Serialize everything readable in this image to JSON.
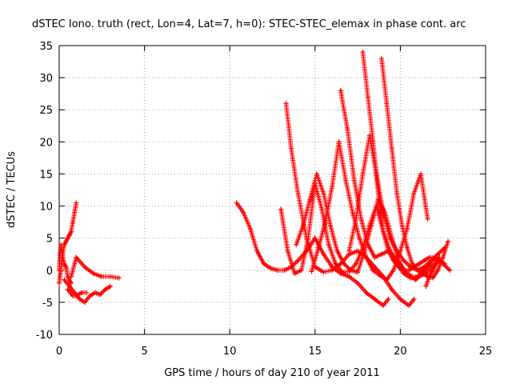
{
  "chart_data": {
    "type": "scatter",
    "title": "dSTEC Iono. truth (rect, Lon=4, Lat=7, h=0): STEC-STEC_elemax in phase cont. arc",
    "xlabel": "GPS time / hours of day 210 of year 2011",
    "ylabel": "dSTEC  / TECUs",
    "xlim": [
      0,
      25
    ],
    "ylim": [
      -10,
      35
    ],
    "xticks": [
      "0",
      "5",
      "10",
      "15",
      "20",
      "25"
    ],
    "yticks": [
      "-10",
      "-5",
      "0",
      "5",
      "10",
      "15",
      "20",
      "25",
      "30",
      "35"
    ],
    "grid": true,
    "marker": "+",
    "color": "#ff0000",
    "series": [
      {
        "x": [
          0.0,
          0.1,
          0.2,
          0.3,
          0.4,
          0.5,
          0.6,
          0.7,
          0.8,
          0.9,
          1.0
        ],
        "y": [
          -2.0,
          0.0,
          2.5,
          4.0,
          4.5,
          5.0,
          5.5,
          6.0,
          7.5,
          9.0,
          10.5
        ]
      },
      {
        "x": [
          0.0,
          0.05,
          0.1,
          0.2,
          0.3,
          0.4,
          0.5,
          0.7
        ],
        "y": [
          0.0,
          2.5,
          4.0,
          2.0,
          1.0,
          0.5,
          -1.0,
          -2.0
        ]
      },
      {
        "x": [
          0.7,
          1.0,
          1.5,
          2.0,
          2.5,
          3.0,
          3.5
        ],
        "y": [
          -1.0,
          2.0,
          0.5,
          -0.5,
          -1.0,
          -1.0,
          -1.2
        ]
      },
      {
        "x": [
          0.3,
          0.6,
          0.9,
          1.2,
          1.5,
          1.8,
          2.1,
          2.4,
          2.7,
          3.0
        ],
        "y": [
          -1.5,
          -2.5,
          -3.5,
          -4.5,
          -5.0,
          -4.0,
          -3.5,
          -3.8,
          -3.0,
          -2.5
        ]
      },
      {
        "x": [
          0.5,
          0.8,
          1.0,
          1.3,
          1.6
        ],
        "y": [
          -3.0,
          -4.0,
          -4.0,
          -3.5,
          -3.5
        ]
      },
      {
        "x": [
          10.4,
          10.8,
          11.2,
          11.6,
          12.0,
          12.4,
          12.8,
          13.2,
          13.6,
          14.0,
          14.5,
          15.0,
          15.5,
          16.0,
          16.5,
          17.0,
          17.5,
          18.0,
          18.5,
          19.0,
          19.3
        ],
        "y": [
          10.5,
          9.0,
          6.5,
          3.0,
          1.0,
          0.3,
          0.0,
          0.0,
          0.5,
          1.5,
          3.0,
          5.0,
          2.5,
          0.5,
          -0.5,
          -1.0,
          -2.0,
          -3.5,
          -4.5,
          -5.5,
          -4.5
        ]
      },
      {
        "x": [
          13.3,
          13.6,
          14.0,
          14.5,
          15.0,
          15.5,
          16.0,
          16.5,
          17.0,
          17.5,
          18.0,
          18.5,
          19.0,
          19.5,
          20.0,
          20.5,
          20.8
        ],
        "y": [
          26.0,
          19.0,
          12.0,
          5.0,
          0.5,
          -0.3,
          0.0,
          1.0,
          2.5,
          3.0,
          2.0,
          0.5,
          -1.0,
          -3.0,
          -4.5,
          -5.5,
          -4.5
        ]
      },
      {
        "x": [
          13.0,
          13.4,
          13.8,
          14.2,
          14.6,
          15.0,
          15.4,
          15.8,
          16.2,
          16.6,
          17.0,
          17.4,
          17.8,
          18.2,
          18.6,
          19.0,
          19.4,
          19.8,
          20.2,
          20.6,
          21.0,
          21.4,
          21.8
        ],
        "y": [
          9.5,
          3.0,
          -0.5,
          0.0,
          5.0,
          13.5,
          9.5,
          4.0,
          1.0,
          -0.3,
          -0.2,
          1.0,
          3.5,
          7.0,
          10.0,
          6.0,
          3.0,
          1.0,
          -0.5,
          -1.2,
          -1.0,
          0.0,
          1.0
        ]
      },
      {
        "x": [
          13.9,
          14.3,
          14.7,
          15.1,
          15.5,
          15.9,
          16.3,
          16.7,
          17.1,
          17.5,
          17.9,
          18.3,
          18.7,
          19.1,
          19.5,
          19.9,
          20.3,
          20.7,
          21.1,
          21.5,
          21.9,
          22.3
        ],
        "y": [
          4.0,
          7.0,
          11.0,
          15.0,
          12.0,
          7.0,
          3.0,
          1.0,
          0.0,
          -0.3,
          3.0,
          7.0,
          11.0,
          9.0,
          5.0,
          1.5,
          -0.5,
          -1.0,
          -1.0,
          -0.5,
          0.5,
          2.0
        ]
      },
      {
        "x": [
          14.8,
          15.2,
          15.6,
          16.0,
          16.4,
          16.8,
          17.2,
          17.6,
          18.0,
          18.4,
          18.8,
          19.2,
          19.6,
          20.0,
          20.4,
          20.8,
          21.2,
          21.6
        ],
        "y": [
          -0.2,
          3.5,
          7.5,
          13.0,
          20.0,
          14.0,
          9.0,
          5.0,
          2.0,
          0.0,
          -0.8,
          -1.5,
          0.0,
          3.0,
          6.5,
          12.0,
          15.0,
          8.0
        ]
      },
      {
        "x": [
          16.5,
          16.9,
          17.3,
          17.7,
          18.1,
          18.5,
          18.9,
          19.3,
          19.7,
          20.1,
          20.5,
          20.9,
          21.3,
          21.7,
          22.1
        ],
        "y": [
          28.0,
          22.0,
          14.0,
          8.0,
          4.0,
          2.0,
          2.5,
          3.0,
          2.0,
          0.5,
          -0.8,
          -1.5,
          -0.5,
          1.0,
          2.0
        ]
      },
      {
        "x": [
          17.0,
          17.4,
          17.8,
          18.2,
          18.6,
          19.0,
          19.4,
          19.8,
          20.2,
          20.6,
          21.0,
          21.4,
          21.8,
          22.2,
          22.6
        ],
        "y": [
          3.0,
          8.0,
          15.0,
          21.0,
          15.0,
          9.0,
          5.0,
          3.0,
          1.5,
          0.5,
          0.0,
          0.5,
          1.5,
          2.5,
          3.5
        ]
      },
      {
        "x": [
          17.8,
          18.1,
          18.4,
          18.7,
          19.0,
          19.3,
          19.6,
          19.9,
          20.2,
          20.5,
          20.8,
          21.1,
          21.4,
          21.7,
          22.0,
          22.3,
          22.6
        ],
        "y": [
          34.0,
          27.0,
          20.0,
          12.0,
          6.0,
          3.0,
          1.5,
          0.5,
          0.0,
          0.0,
          0.5,
          1.0,
          1.5,
          2.0,
          2.0,
          1.5,
          1.0
        ]
      },
      {
        "x": [
          18.9,
          19.2,
          19.5,
          19.8,
          20.1,
          20.4,
          20.7,
          21.0,
          21.3,
          21.6,
          21.9,
          22.2,
          22.5,
          22.8
        ],
        "y": [
          33.0,
          26.0,
          19.0,
          12.0,
          7.0,
          3.5,
          1.0,
          0.0,
          -0.5,
          -1.0,
          -1.2,
          0.0,
          2.0,
          4.5
        ]
      },
      {
        "x": [
          21.5,
          21.7,
          21.9,
          22.1,
          22.3,
          22.5,
          22.7,
          22.9
        ],
        "y": [
          -2.5,
          -1.0,
          0.0,
          1.0,
          1.5,
          1.0,
          0.5,
          0.0
        ]
      }
    ]
  }
}
